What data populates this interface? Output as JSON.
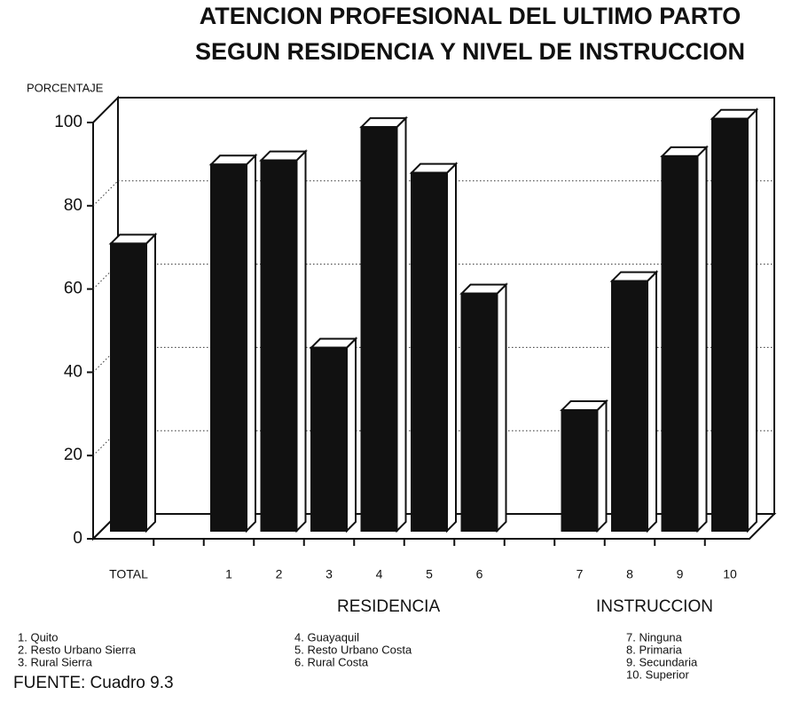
{
  "chart_data": {
    "type": "bar3d",
    "title": "ATENCION PROFESIONAL DEL ULTIMO PARTO",
    "subtitle": "SEGUN RESIDENCIA Y NIVEL DE INSTRUCCION",
    "y_label": "PORCENTAJE",
    "categories": [
      "TOTAL",
      null,
      "1",
      "2",
      "3",
      "4",
      "5",
      "6",
      null,
      "7",
      "8",
      "9",
      "10"
    ],
    "values": [
      69,
      null,
      88,
      89,
      44,
      97,
      86,
      57,
      null,
      29,
      60,
      90,
      99
    ],
    "color": "#111111",
    "ylim": [
      0,
      100
    ],
    "yticks": [
      0,
      20,
      40,
      60,
      80,
      100
    ],
    "grid": true,
    "group_labels": [
      "RESIDENCIA",
      "INSTRUCCION"
    ],
    "notes": [
      [
        "1. Quito",
        "2. Resto Urbano Sierra",
        "3. Rural Sierra"
      ],
      [
        "4. Guayaquil",
        "5. Resto Urbano Costa",
        "6. Rural Costa"
      ],
      [
        "7. Ninguna",
        "8. Primaria",
        "9. Secundaria",
        "10. Superior"
      ]
    ],
    "source": "FUENTE: Cuadro 9.3"
  }
}
